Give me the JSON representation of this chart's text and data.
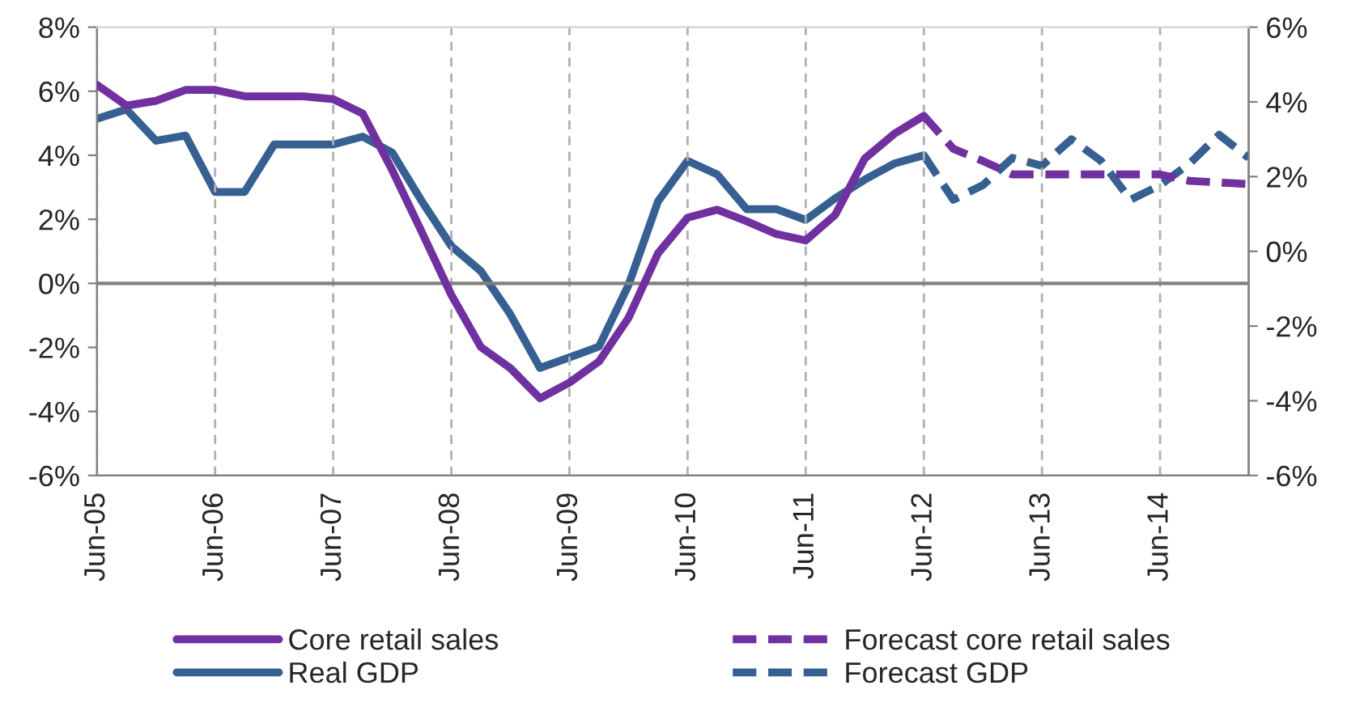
{
  "chart_data": {
    "type": "line",
    "categories": [
      "Jun-05",
      null,
      null,
      null,
      "Jun-06",
      null,
      null,
      null,
      "Jun-07",
      null,
      null,
      null,
      "Jun-08",
      null,
      null,
      null,
      "Jun-09",
      null,
      null,
      null,
      "Jun-10",
      null,
      null,
      null,
      "Jun-11",
      null,
      null,
      null,
      "Jun-12",
      null,
      null,
      null,
      "Jun-13",
      null,
      null,
      null,
      "Jun-14",
      null,
      null,
      null
    ],
    "series": [
      {
        "name": "Core retail sales",
        "color": "#7030a0",
        "line_style": "solid",
        "values": [
          6.2,
          5.55,
          5.7,
          6.04,
          6.04,
          5.84,
          5.84,
          5.84,
          5.75,
          5.3,
          3.53,
          1.6,
          -0.36,
          -1.99,
          -2.65,
          -3.59,
          -3.1,
          -2.44,
          -1.08,
          0.94,
          2.05,
          2.3,
          1.94,
          1.54,
          1.34,
          2.14,
          3.9,
          4.67,
          5.23,
          null,
          null,
          null,
          null,
          null,
          null,
          null,
          null,
          null,
          null,
          null
        ]
      },
      {
        "name": "Real GDP",
        "color": "#376092",
        "line_style": "solid",
        "axis": "y2",
        "values": [
          3.55,
          3.8,
          2.96,
          3.1,
          1.59,
          1.59,
          2.86,
          2.86,
          2.86,
          3.07,
          2.64,
          1.34,
          0.14,
          -0.53,
          -1.69,
          -3.12,
          -2.84,
          -2.55,
          -0.9,
          1.34,
          2.42,
          2.06,
          1.13,
          1.13,
          0.84,
          1.42,
          1.92,
          2.35,
          2.57,
          null,
          null,
          null,
          null,
          null,
          null,
          null,
          null,
          null,
          null,
          null
        ]
      },
      {
        "name": "Forecast core retail sales",
        "color": "#7030a0",
        "line_style": "dashed",
        "values": [
          null,
          null,
          null,
          null,
          null,
          null,
          null,
          null,
          null,
          null,
          null,
          null,
          null,
          null,
          null,
          null,
          null,
          null,
          null,
          null,
          null,
          null,
          null,
          null,
          null,
          null,
          null,
          null,
          5.23,
          4.2,
          3.82,
          3.4,
          3.4,
          3.4,
          3.4,
          3.4,
          3.4,
          3.2,
          3.15,
          3.1
        ]
      },
      {
        "name": "Forecast GDP",
        "color": "#376092",
        "line_style": "dashed",
        "axis": "y2",
        "values": [
          null,
          null,
          null,
          null,
          null,
          null,
          null,
          null,
          null,
          null,
          null,
          null,
          null,
          null,
          null,
          null,
          null,
          null,
          null,
          null,
          null,
          null,
          null,
          null,
          null,
          null,
          null,
          null,
          2.57,
          1.38,
          1.77,
          2.5,
          2.29,
          3.0,
          2.42,
          1.38,
          1.77,
          2.35,
          3.12,
          2.5
        ]
      }
    ],
    "ylim": [
      -6,
      8
    ],
    "yticks": [
      {
        "value": -6,
        "label": "-6%"
      },
      {
        "value": -4,
        "label": "-4%"
      },
      {
        "value": -2,
        "label": "-2%"
      },
      {
        "value": 0,
        "label": "0%"
      },
      {
        "value": 2,
        "label": "2%"
      },
      {
        "value": 4,
        "label": "4%"
      },
      {
        "value": 6,
        "label": "6%"
      },
      {
        "value": 8,
        "label": "8%"
      }
    ],
    "y2lim": [
      -6,
      6
    ],
    "y2ticks": [
      {
        "value": -6,
        "label": "-6%"
      },
      {
        "value": -4,
        "label": "-4%"
      },
      {
        "value": -2,
        "label": "-2%"
      },
      {
        "value": 0,
        "label": "0%"
      },
      {
        "value": 2,
        "label": "2%"
      },
      {
        "value": 4,
        "label": "4%"
      },
      {
        "value": 6,
        "label": "6%"
      }
    ],
    "ref_lines": [
      {
        "axis": "y",
        "value": 0,
        "color": "#808080"
      }
    ],
    "grid": "x",
    "legend": "bottom"
  }
}
